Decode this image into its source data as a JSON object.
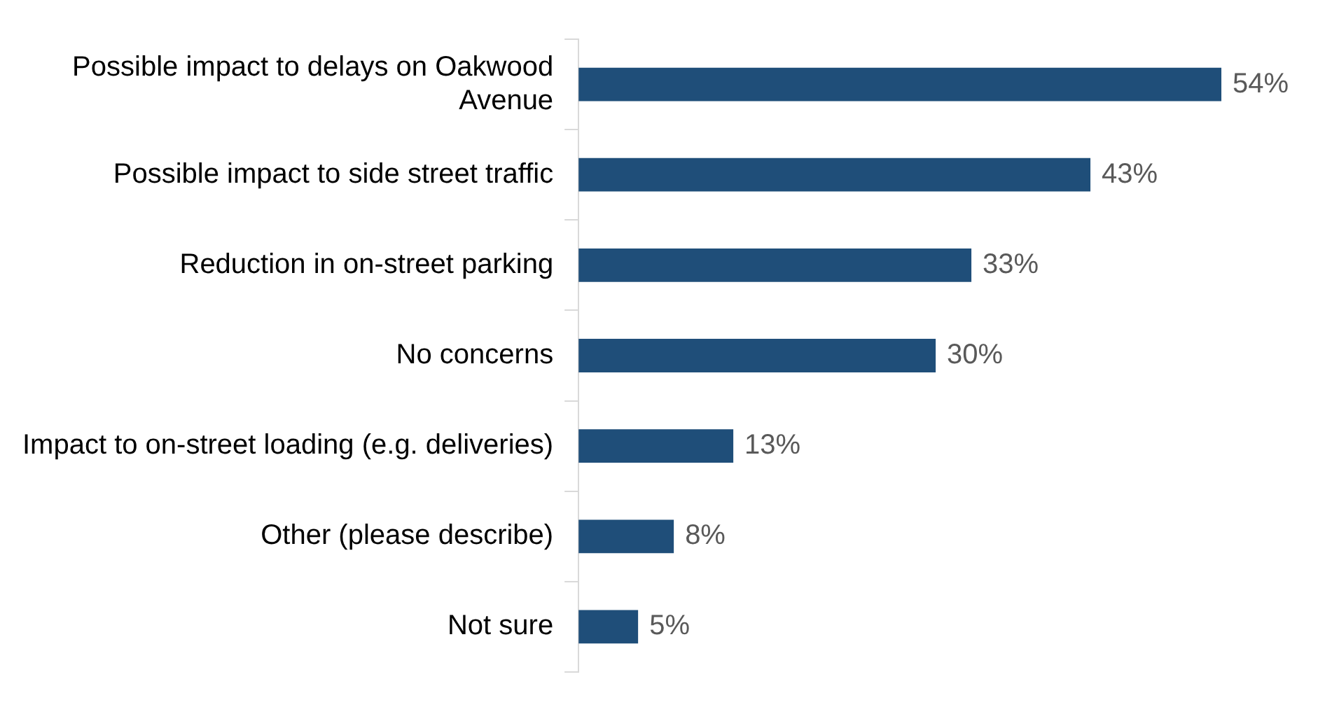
{
  "chart_data": {
    "type": "bar",
    "orientation": "horizontal",
    "categories": [
      "Possible impact to delays on Oakwood Avenue",
      "Possible impact to side street traffic",
      "Reduction in on-street parking",
      "No concerns",
      "Impact to on-street loading (e.g. deliveries)",
      "Other (please describe)",
      "Not sure"
    ],
    "values": [
      54,
      43,
      33,
      30,
      13,
      8,
      5
    ],
    "value_labels": [
      "54%",
      "43%",
      "33%",
      "30%",
      "13%",
      "8%",
      "5%"
    ],
    "color": "#1f4e79",
    "grid": false,
    "legend": false,
    "tick_labels": "y"
  }
}
